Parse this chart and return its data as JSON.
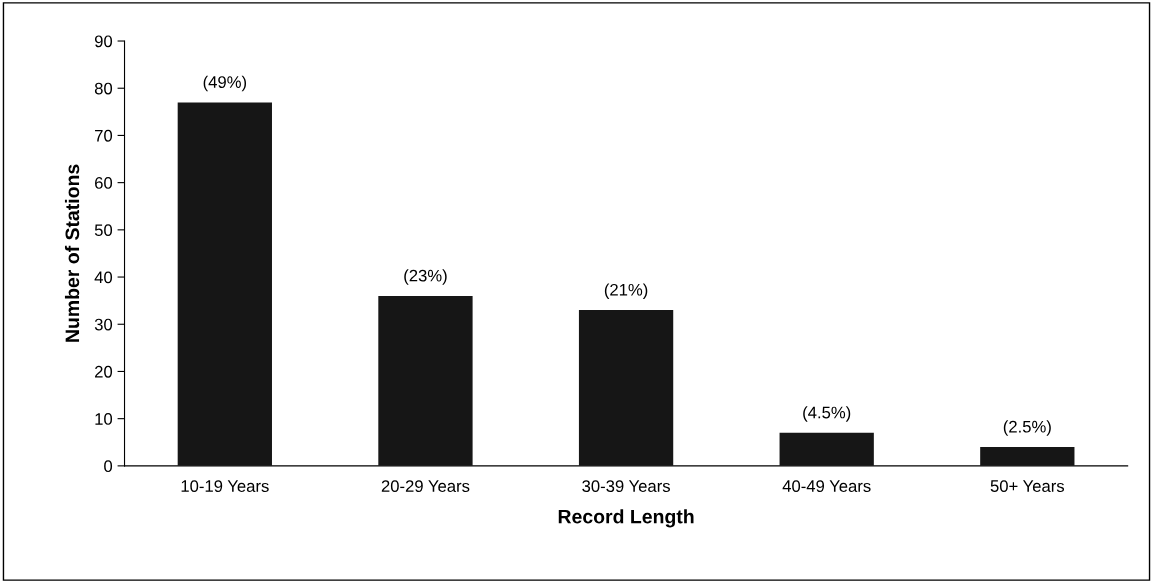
{
  "chart_data": {
    "type": "bar",
    "xlabel": "Record Length",
    "ylabel": "Number of Stations",
    "categories": [
      "10-19 Years",
      "20-29 Years",
      "30-39 Years",
      "40-49 Years",
      "50+ Years"
    ],
    "values": [
      77,
      36,
      33,
      7,
      4
    ],
    "annotations": [
      {
        "text": "(49%)",
        "x": "10-19 Years",
        "y": 77
      },
      {
        "text": "(23%)",
        "x": "20-29 Years",
        "y": 36
      },
      {
        "text": "(21%)",
        "x": "30-39 Years",
        "y": 33
      },
      {
        "text": "(4.5%)",
        "x": "40-49 Years",
        "y": 7
      },
      {
        "text": "(2.5%)",
        "x": "50+ Years",
        "y": 4
      }
    ],
    "color": "#161616",
    "ylim": [
      0,
      90
    ],
    "yticks": [
      0,
      10,
      20,
      30,
      40,
      50,
      60,
      70,
      80,
      90
    ],
    "grid": false
  }
}
